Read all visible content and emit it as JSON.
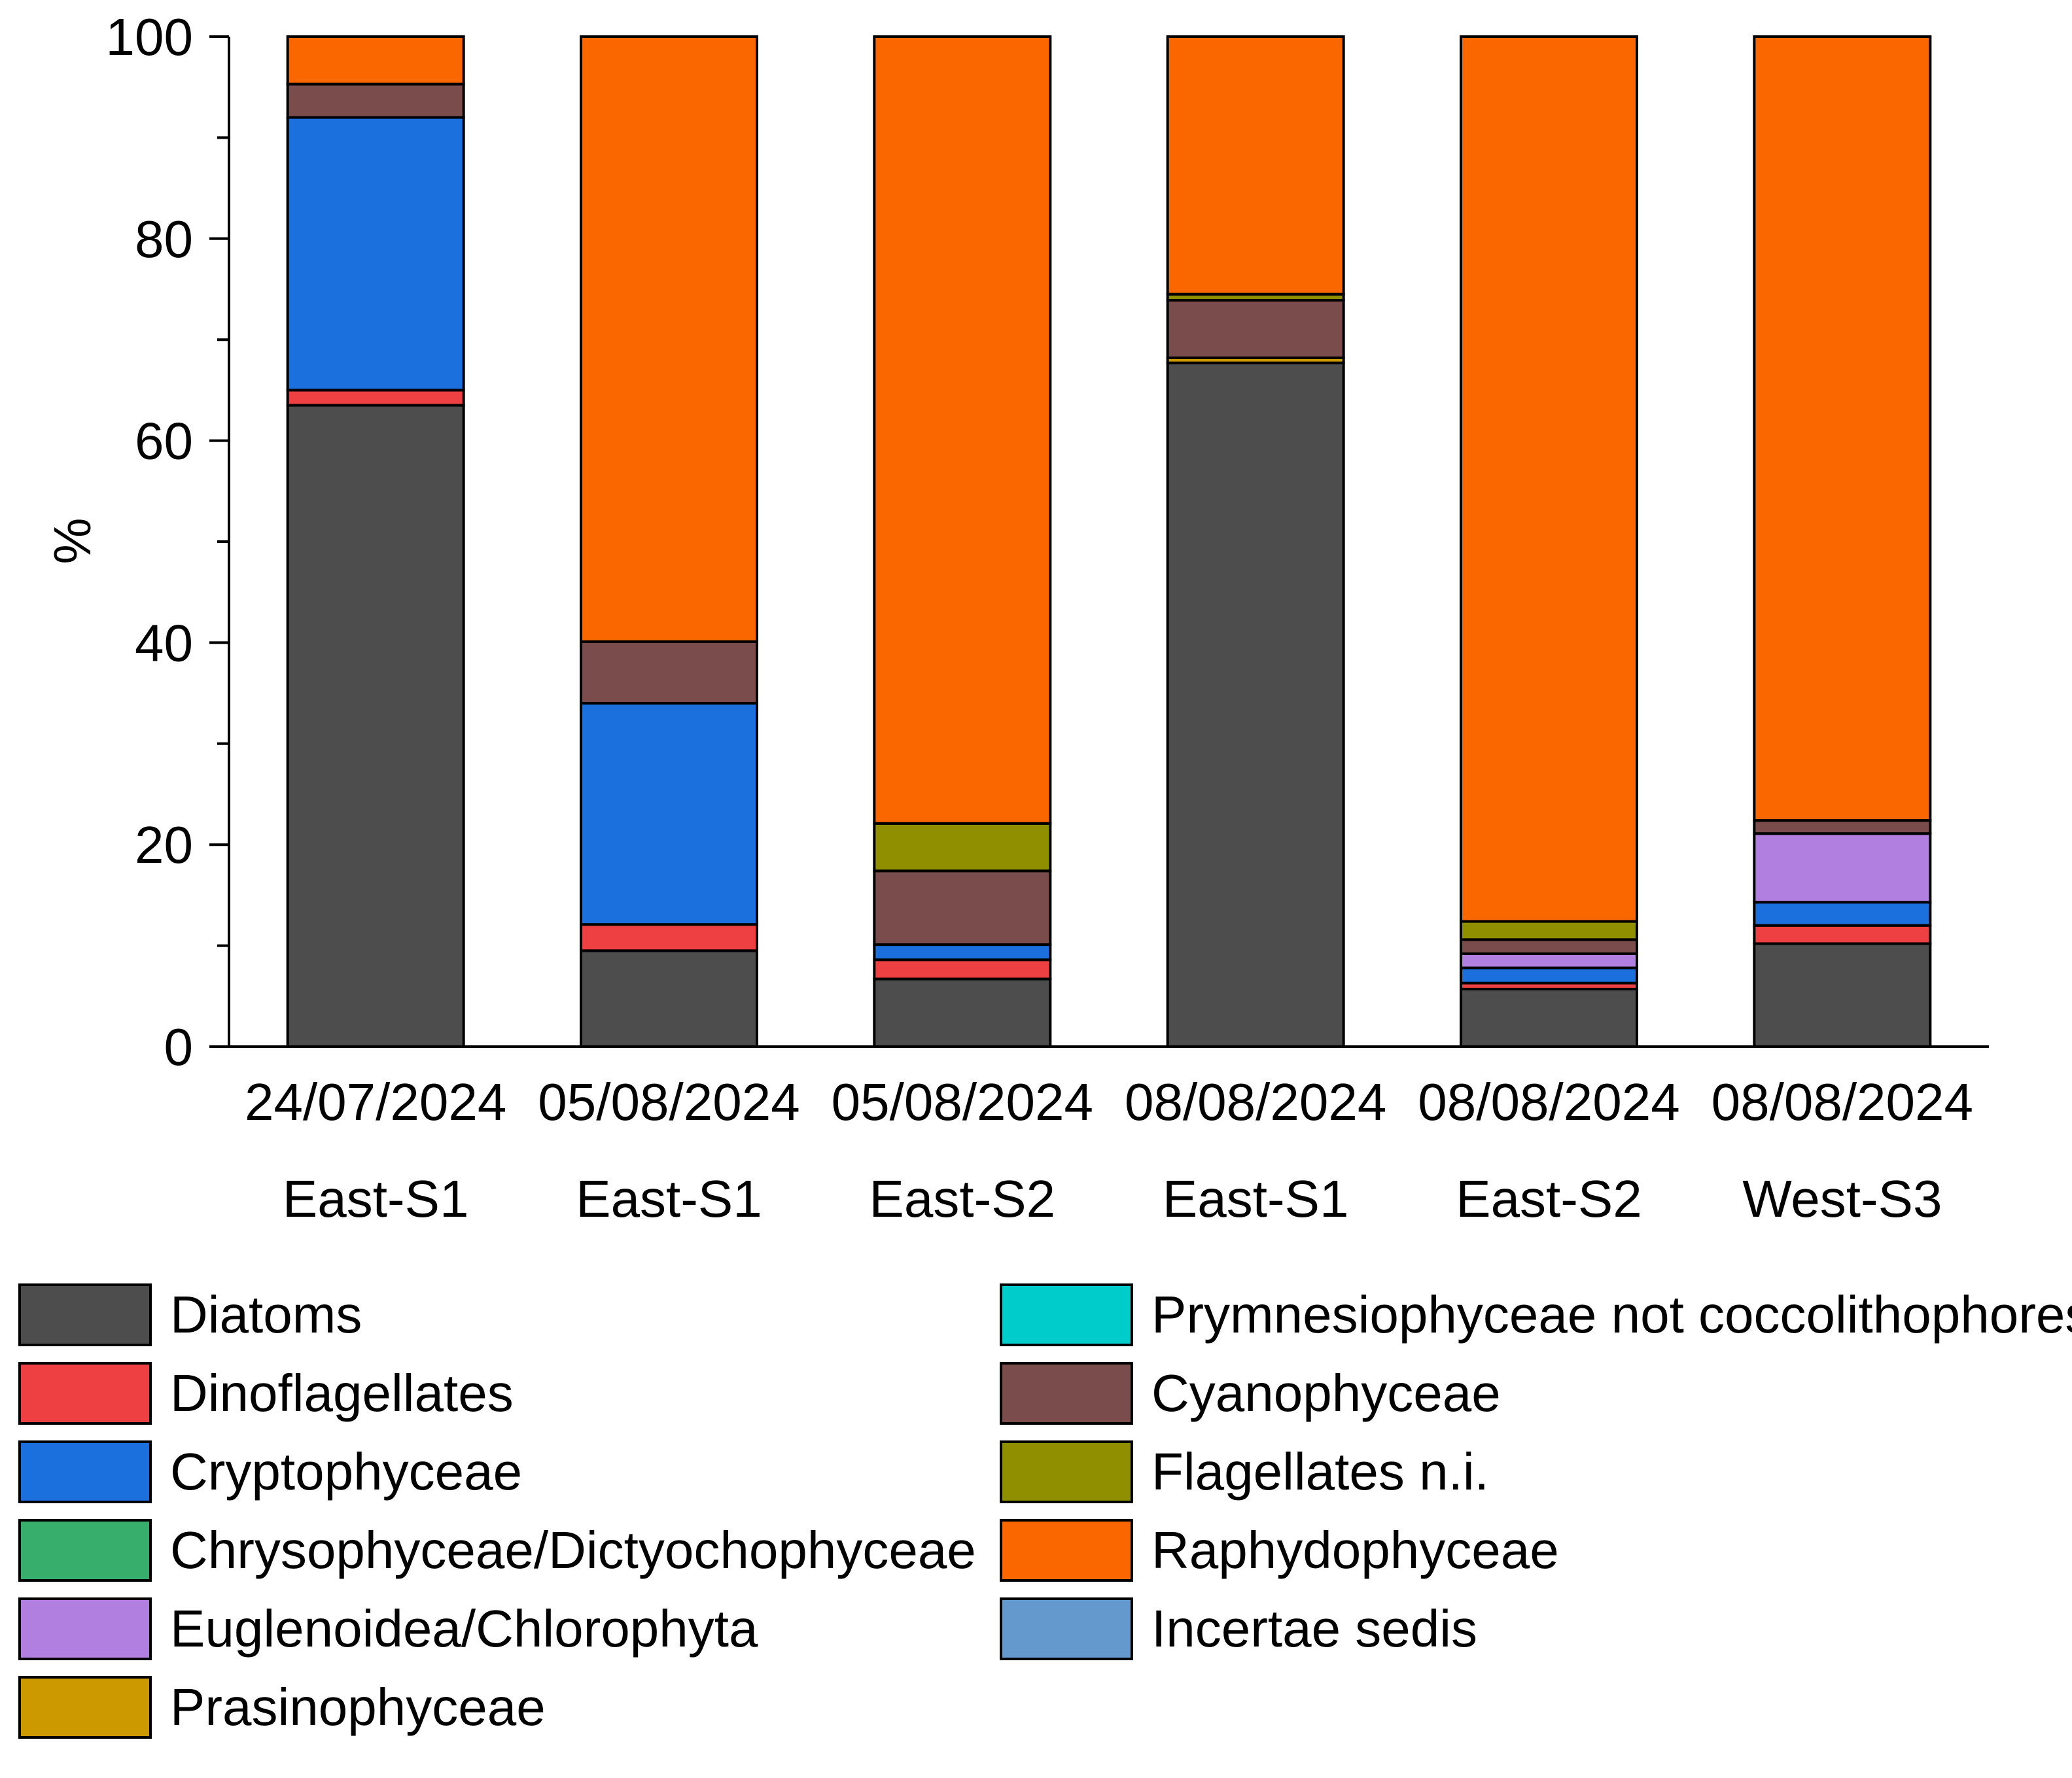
{
  "chart_data": {
    "type": "bar",
    "stacked": true,
    "title": "",
    "xlabel": "",
    "ylabel": "%",
    "ylim": [
      0,
      100
    ],
    "yticks": [
      "0",
      "20",
      "40",
      "60",
      "80",
      "100"
    ],
    "categories": [
      {
        "date": "24/07/2024",
        "site": "East-S1"
      },
      {
        "date": "05/08/2024",
        "site": "East-S1"
      },
      {
        "date": "05/08/2024",
        "site": "East-S2"
      },
      {
        "date": "08/08/2024",
        "site": "East-S1"
      },
      {
        "date": "08/08/2024",
        "site": "East-S2"
      },
      {
        "date": "08/08/2024",
        "site": "West-S3"
      }
    ],
    "series": [
      {
        "name": "Diatoms",
        "color": "#4d4d4d",
        "values": [
          63.5,
          9.5,
          6.7,
          67.7,
          5.7,
          10.2
        ]
      },
      {
        "name": "Dinoflagellates",
        "color": "#ee4042",
        "values": [
          1.5,
          2.6,
          1.9,
          0,
          0.6,
          1.8
        ]
      },
      {
        "name": "Cryptophyceae",
        "color": "#1b70de",
        "values": [
          27.0,
          21.9,
          1.5,
          0,
          1.5,
          2.3
        ]
      },
      {
        "name": "Chrysophyceae/Dictyochophyceae",
        "color": "#37ae6c",
        "values": [
          0,
          0,
          0,
          0,
          0,
          0
        ]
      },
      {
        "name": "Euglenoidea/Chlorophyta",
        "color": "#b07fe0",
        "values": [
          0,
          0,
          0,
          0,
          1.4,
          6.8
        ]
      },
      {
        "name": "Prasinophyceae",
        "color": "#cc9900",
        "values": [
          0,
          0,
          0,
          0.5,
          0,
          0
        ]
      },
      {
        "name": "Prymnesiophyceae not coccolithophores",
        "color": "#00cccc",
        "values": [
          0,
          0,
          0,
          0,
          0,
          0
        ]
      },
      {
        "name": "Cyanophyceae",
        "color": "#7b4c4c",
        "values": [
          3.3,
          6.1,
          7.3,
          5.7,
          1.4,
          1.3
        ]
      },
      {
        "name": "Flagellates n.i.",
        "color": "#8f8f00",
        "values": [
          0,
          0,
          4.7,
          0.6,
          1.8,
          0
        ]
      },
      {
        "name": "Raphydophyceae",
        "color": "#fa6600",
        "values": [
          4.7,
          59.9,
          77.9,
          25.5,
          87.6,
          77.6
        ]
      },
      {
        "name": "Incertae sedis",
        "color": "#6399cc",
        "values": [
          0,
          0,
          0,
          0,
          0,
          0
        ]
      }
    ],
    "legend": {
      "placement": "bottom",
      "left_column": [
        "Diatoms",
        "Dinoflagellates",
        "Cryptophyceae",
        "Chrysophyceae/Dictyochophyceae",
        "Euglenoidea/Chlorophyta",
        "Prasinophyceae"
      ],
      "right_column": [
        "Prymnesiophyceae not coccolithophores",
        "Cyanophyceae",
        "Flagellates n.i.",
        "Raphydophyceae",
        "Incertae sedis"
      ]
    }
  }
}
